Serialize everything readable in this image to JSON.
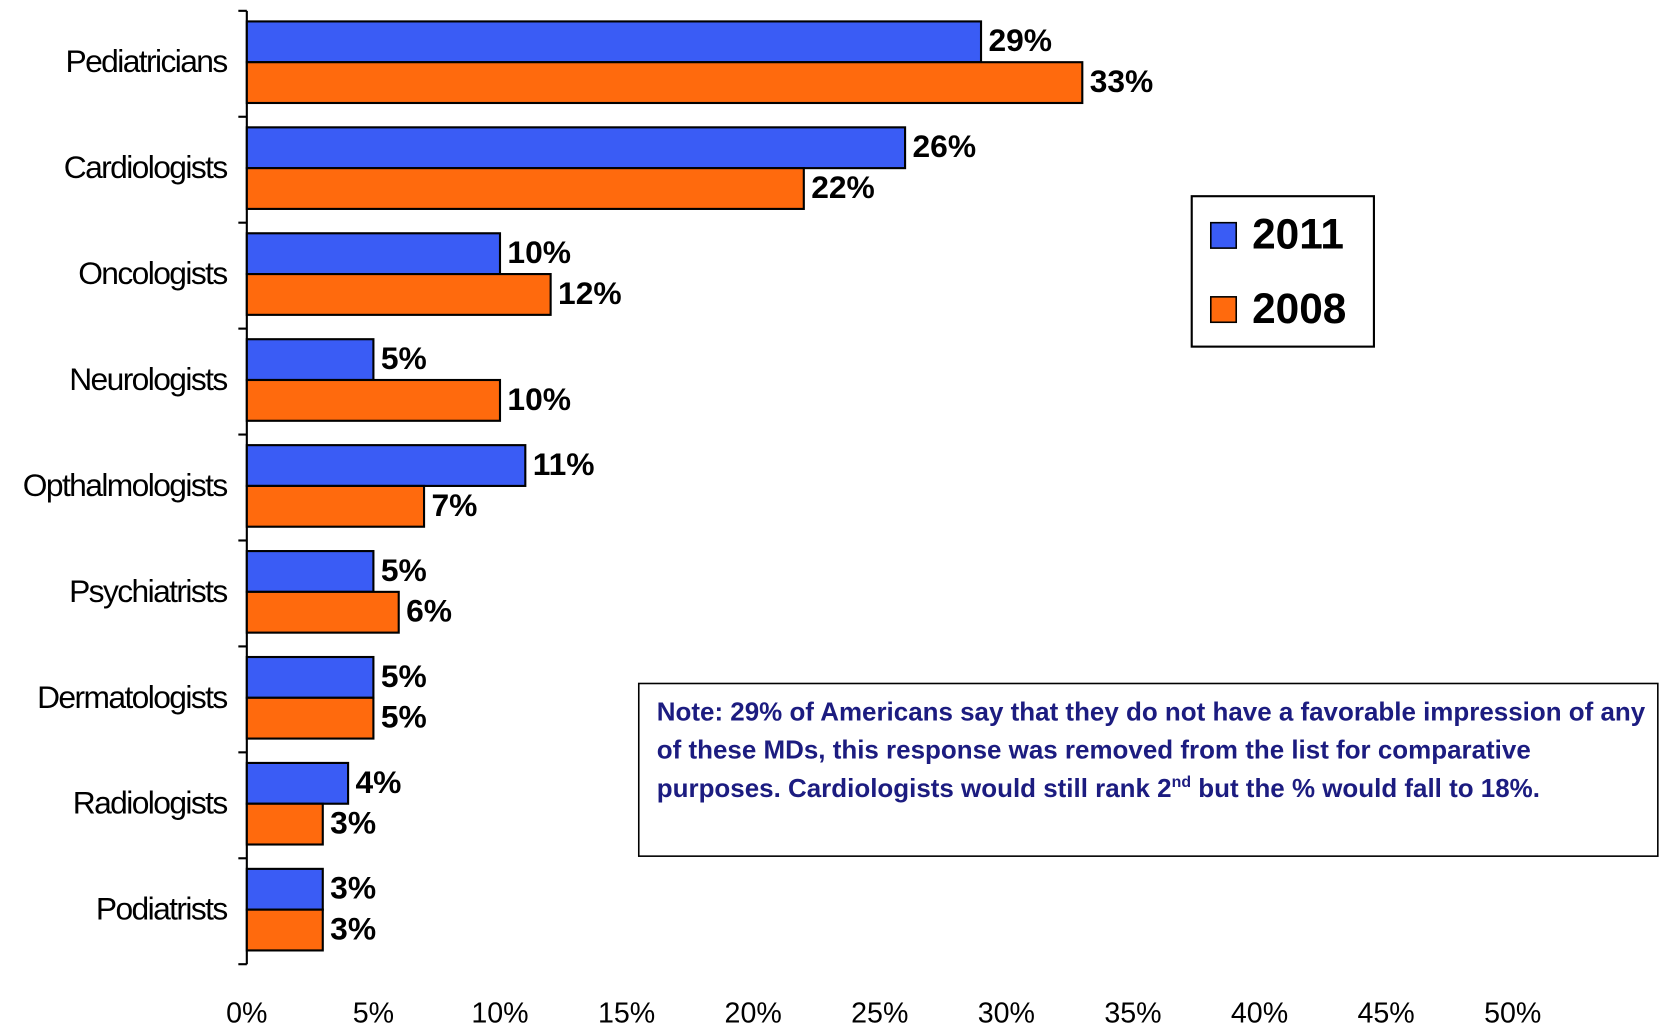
{
  "chart_data": {
    "type": "bar",
    "orientation": "horizontal",
    "categories": [
      "Pediatricians",
      "Cardiologists",
      "Oncologists",
      "Neurologists",
      "Opthalmologists",
      "Psychiatrists",
      "Dermatologists",
      "Radiologists",
      "Podiatrists"
    ],
    "series": [
      {
        "name": "2011",
        "color": "#3a5cf5",
        "values": [
          29,
          26,
          10,
          5,
          11,
          5,
          5,
          4,
          3
        ],
        "value_labels": [
          "29%",
          "26%",
          "10%",
          "5%",
          "11%",
          "5%",
          "5%",
          "4%",
          "3%"
        ]
      },
      {
        "name": "2008",
        "color": "#ff6a0d",
        "values": [
          33,
          22,
          12,
          10,
          7,
          6,
          5,
          3,
          3
        ],
        "value_labels": [
          "33%",
          "22%",
          "12%",
          "10%",
          "7%",
          "6%",
          "5%",
          "3%",
          "3%"
        ]
      }
    ],
    "xlim": [
      0,
      50
    ],
    "xticks": [
      {
        "value": 0,
        "label": "0%"
      },
      {
        "value": 5,
        "label": "5%"
      },
      {
        "value": 10,
        "label": "10%"
      },
      {
        "value": 15,
        "label": "15%"
      },
      {
        "value": 20,
        "label": "20%"
      },
      {
        "value": 25,
        "label": "25%"
      },
      {
        "value": 30,
        "label": "30%"
      },
      {
        "value": 35,
        "label": "35%"
      },
      {
        "value": 40,
        "label": "40%"
      },
      {
        "value": 45,
        "label": "45%"
      },
      {
        "value": 50,
        "label": "50%"
      }
    ],
    "legend": "right",
    "annotation": {
      "text": "Note:  29% of Americans say that they do not have a favorable impression of any of these MDs, this response was removed from the list for comparative purposes.  Cardiologists would still rank 2",
      "superscript": "nd",
      "text_after": " but the % would fall to 18%."
    }
  }
}
